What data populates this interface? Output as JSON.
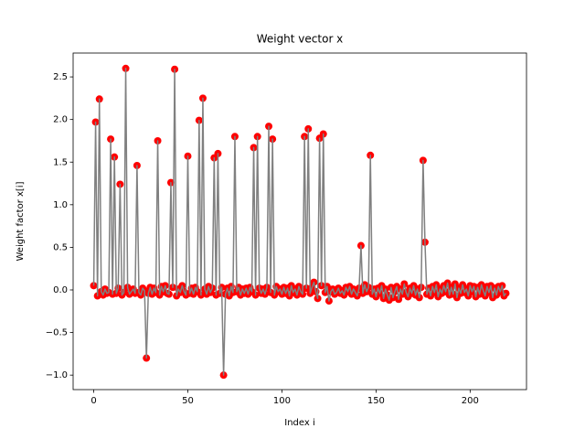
{
  "chart_data": {
    "type": "line",
    "title": "Weight vector x",
    "xlabel": "Index i",
    "ylabel": "Weight factor x[i]",
    "x": [
      0,
      1,
      2,
      3,
      4,
      5,
      6,
      7,
      8,
      9,
      10,
      11,
      12,
      13,
      14,
      15,
      16,
      17,
      18,
      19,
      20,
      21,
      22,
      23,
      24,
      25,
      26,
      27,
      28,
      29,
      30,
      31,
      32,
      33,
      34,
      35,
      36,
      37,
      38,
      39,
      40,
      41,
      42,
      43,
      44,
      45,
      46,
      47,
      48,
      49,
      50,
      51,
      52,
      53,
      54,
      55,
      56,
      57,
      58,
      59,
      60,
      61,
      62,
      63,
      64,
      65,
      66,
      67,
      68,
      69,
      70,
      71,
      72,
      73,
      74,
      75,
      76,
      77,
      78,
      79,
      80,
      81,
      82,
      83,
      84,
      85,
      86,
      87,
      88,
      89,
      90,
      91,
      92,
      93,
      94,
      95,
      96,
      97,
      98,
      99,
      100,
      101,
      102,
      103,
      104,
      105,
      106,
      107,
      108,
      109,
      110,
      111,
      112,
      113,
      114,
      115,
      116,
      117,
      118,
      119,
      120,
      121,
      122,
      123,
      124,
      125,
      126,
      127,
      128,
      129,
      130,
      131,
      132,
      133,
      134,
      135,
      136,
      137,
      138,
      139,
      140,
      141,
      142,
      143,
      144,
      145,
      146,
      147,
      148,
      149,
      150,
      151,
      152,
      153,
      154,
      155,
      156,
      157,
      158,
      159,
      160,
      161,
      162,
      163,
      164,
      165,
      166,
      167,
      168,
      169,
      170,
      171,
      172,
      173,
      174,
      175,
      176,
      177,
      178,
      179,
      180,
      181,
      182,
      183,
      184,
      185,
      186,
      187,
      188,
      189,
      190,
      191,
      192,
      193,
      194,
      195,
      196,
      197,
      198,
      199,
      200,
      201,
      202,
      203,
      204,
      205,
      206,
      207,
      208,
      209,
      210,
      211,
      212,
      213,
      214,
      215,
      216,
      217,
      218,
      219
    ],
    "series": [
      {
        "color": "#808080",
        "marker_color": "#ff0000",
        "values": [
          0.05,
          1.97,
          -0.07,
          2.24,
          -0.02,
          -0.06,
          0.01,
          -0.04,
          -0.03,
          1.77,
          -0.05,
          1.56,
          -0.04,
          0.02,
          1.24,
          -0.06,
          -0.03,
          2.6,
          0.03,
          -0.05,
          -0.02,
          0.01,
          -0.04,
          1.46,
          -0.03,
          -0.06,
          0.02,
          -0.01,
          -0.8,
          -0.04,
          0.03,
          -0.05,
          0.02,
          -0.03,
          1.75,
          -0.06,
          0.04,
          -0.02,
          0.05,
          -0.04,
          -0.05,
          1.26,
          0.03,
          2.59,
          -0.07,
          0.01,
          -0.03,
          0.05,
          -0.02,
          -0.06,
          1.57,
          -0.04,
          0.02,
          -0.05,
          0.03,
          -0.02,
          1.99,
          -0.06,
          2.25,
          0.01,
          -0.05,
          0.04,
          -0.03,
          0.02,
          1.55,
          -0.06,
          1.6,
          -0.04,
          0.03,
          -1.0,
          -0.05,
          0.02,
          -0.07,
          0.04,
          -0.03,
          1.8,
          -0.02,
          0.03,
          -0.06,
          0.01,
          -0.04,
          0.02,
          -0.05,
          0.03,
          -0.02,
          1.67,
          -0.06,
          1.8,
          0.02,
          -0.04,
          0.01,
          -0.05,
          0.03,
          1.92,
          -0.03,
          1.77,
          -0.06,
          0.04,
          -0.02,
          0.01,
          -0.05,
          0.03,
          -0.04,
          0.02,
          -0.07,
          0.05,
          -0.03,
          0.01,
          -0.06,
          0.04,
          -0.02,
          -0.05,
          1.8,
          0.02,
          1.89,
          -0.04,
          0.03,
          0.09,
          -0.02,
          -0.1,
          1.78,
          0.05,
          1.83,
          -0.03,
          0.04,
          -0.13,
          -0.02,
          0.01,
          -0.05,
          -0.03,
          0.02,
          -0.04,
          -0.01,
          -0.06,
          0.03,
          -0.02,
          0.04,
          -0.05,
          0.01,
          -0.03,
          -0.07,
          0.02,
          0.52,
          -0.04,
          0.06,
          -0.02,
          0.03,
          1.58,
          -0.05,
          0.01,
          -0.08,
          0.02,
          -0.04,
          0.05,
          -0.1,
          0.01,
          -0.06,
          -0.12,
          0.03,
          -0.09,
          -0.02,
          0.04,
          -0.11,
          0.01,
          -0.05,
          0.07,
          -0.03,
          -0.08,
          0.02,
          -0.04,
          0.05,
          -0.06,
          0.01,
          -0.09,
          0.03,
          1.52,
          0.56,
          -0.05,
          0.02,
          -0.07,
          0.04,
          -0.03,
          0.06,
          -0.08,
          0.01,
          -0.04,
          0.05,
          -0.02,
          0.08,
          -0.06,
          0.03,
          -0.05,
          0.07,
          -0.09,
          0.02,
          -0.04,
          0.06,
          -0.03,
          0.01,
          -0.07,
          0.05,
          -0.02,
          0.04,
          -0.08,
          0.03,
          -0.05,
          0.06,
          -0.01,
          -0.07,
          0.04,
          -0.03,
          0.05,
          -0.09,
          0.02,
          -0.06,
          0.04,
          -0.02,
          0.05,
          -0.07,
          -0.04
        ]
      }
    ],
    "xlim": [
      -10.95,
      229.95
    ],
    "ylim": [
      -1.17,
      2.78
    ],
    "xticks": [
      0,
      50,
      100,
      150,
      200
    ],
    "yticks": [
      {
        "value": -1,
        "label": "−1.0"
      },
      {
        "value": -0.5,
        "label": "−0.5"
      },
      {
        "value": 0,
        "label": "0.0"
      },
      {
        "value": 0.5,
        "label": "0.5"
      },
      {
        "value": 1,
        "label": "1.0"
      },
      {
        "value": 1.5,
        "label": "1.5"
      },
      {
        "value": 2,
        "label": "2.0"
      },
      {
        "value": 2.5,
        "label": "2.5"
      }
    ],
    "grid": false
  }
}
